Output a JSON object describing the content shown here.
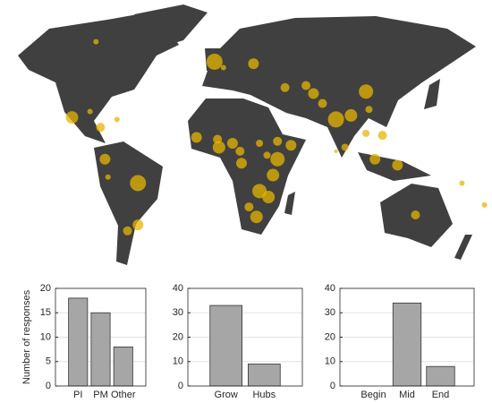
{
  "chart_data": [
    {
      "type": "bubble",
      "color": "#e6b400",
      "xlim": [
        -143,
        185
      ],
      "ylim": [
        -51,
        84
      ],
      "x": [
        -79,
        0,
        6,
        26,
        47,
        61,
        66,
        101,
        72,
        81,
        91,
        103,
        -95,
        -83,
        -76,
        -65,
        -73,
        -51,
        -71,
        -51,
        -58,
        -12,
        2,
        3,
        12,
        17,
        18,
        30,
        35,
        42,
        42,
        39,
        30,
        36,
        23,
        28,
        51,
        87,
        81,
        101,
        112,
        107,
        122,
        134,
        165,
        180
      ],
      "y": [
        63,
        53,
        50,
        52,
        40,
        41,
        37,
        38,
        32,
        24,
        26,
        29,
        25,
        28,
        20,
        24,
        4,
        -8,
        -5,
        -29,
        -32,
        15,
        14,
        10,
        12,
        8,
        2,
        12,
        6,
        13,
        4,
        -4,
        -12,
        -15,
        -20,
        -25,
        11,
        10,
        8,
        17,
        16,
        4,
        1,
        -24,
        -8,
        -19
      ],
      "sizes": [
        3,
        9,
        3,
        6,
        5,
        5,
        6,
        8,
        5,
        9,
        7,
        4,
        7,
        3,
        5,
        3,
        6,
        9,
        3,
        6,
        5,
        6,
        5,
        7,
        6,
        5,
        6,
        4,
        4,
        5,
        8,
        7,
        8,
        7,
        5,
        7,
        6,
        4,
        2,
        4,
        5,
        6,
        6,
        5,
        3,
        3
      ]
    },
    {
      "type": "bar",
      "categories": [
        "PI",
        "PM",
        "Other"
      ],
      "values": [
        18,
        15,
        8
      ],
      "color": "#a6a6a6",
      "ylim": [
        0,
        20
      ],
      "yticks": [
        0,
        5,
        10,
        15,
        20
      ],
      "ylabel": "Number of responses",
      "grid": true
    },
    {
      "type": "bar",
      "categories": [
        "Grow",
        "Hubs"
      ],
      "values": [
        33,
        9
      ],
      "color": "#a6a6a6",
      "ylim": [
        0,
        40
      ],
      "yticks": [
        0,
        10,
        20,
        30,
        40
      ],
      "grid": true
    },
    {
      "type": "bar",
      "categories": [
        "Begin",
        "Mid",
        "End"
      ],
      "values": [
        0,
        34,
        8
      ],
      "color": "#a6a6a6",
      "ylim": [
        0,
        40
      ],
      "yticks": [
        0,
        10,
        20,
        30,
        40
      ],
      "grid": true
    }
  ]
}
